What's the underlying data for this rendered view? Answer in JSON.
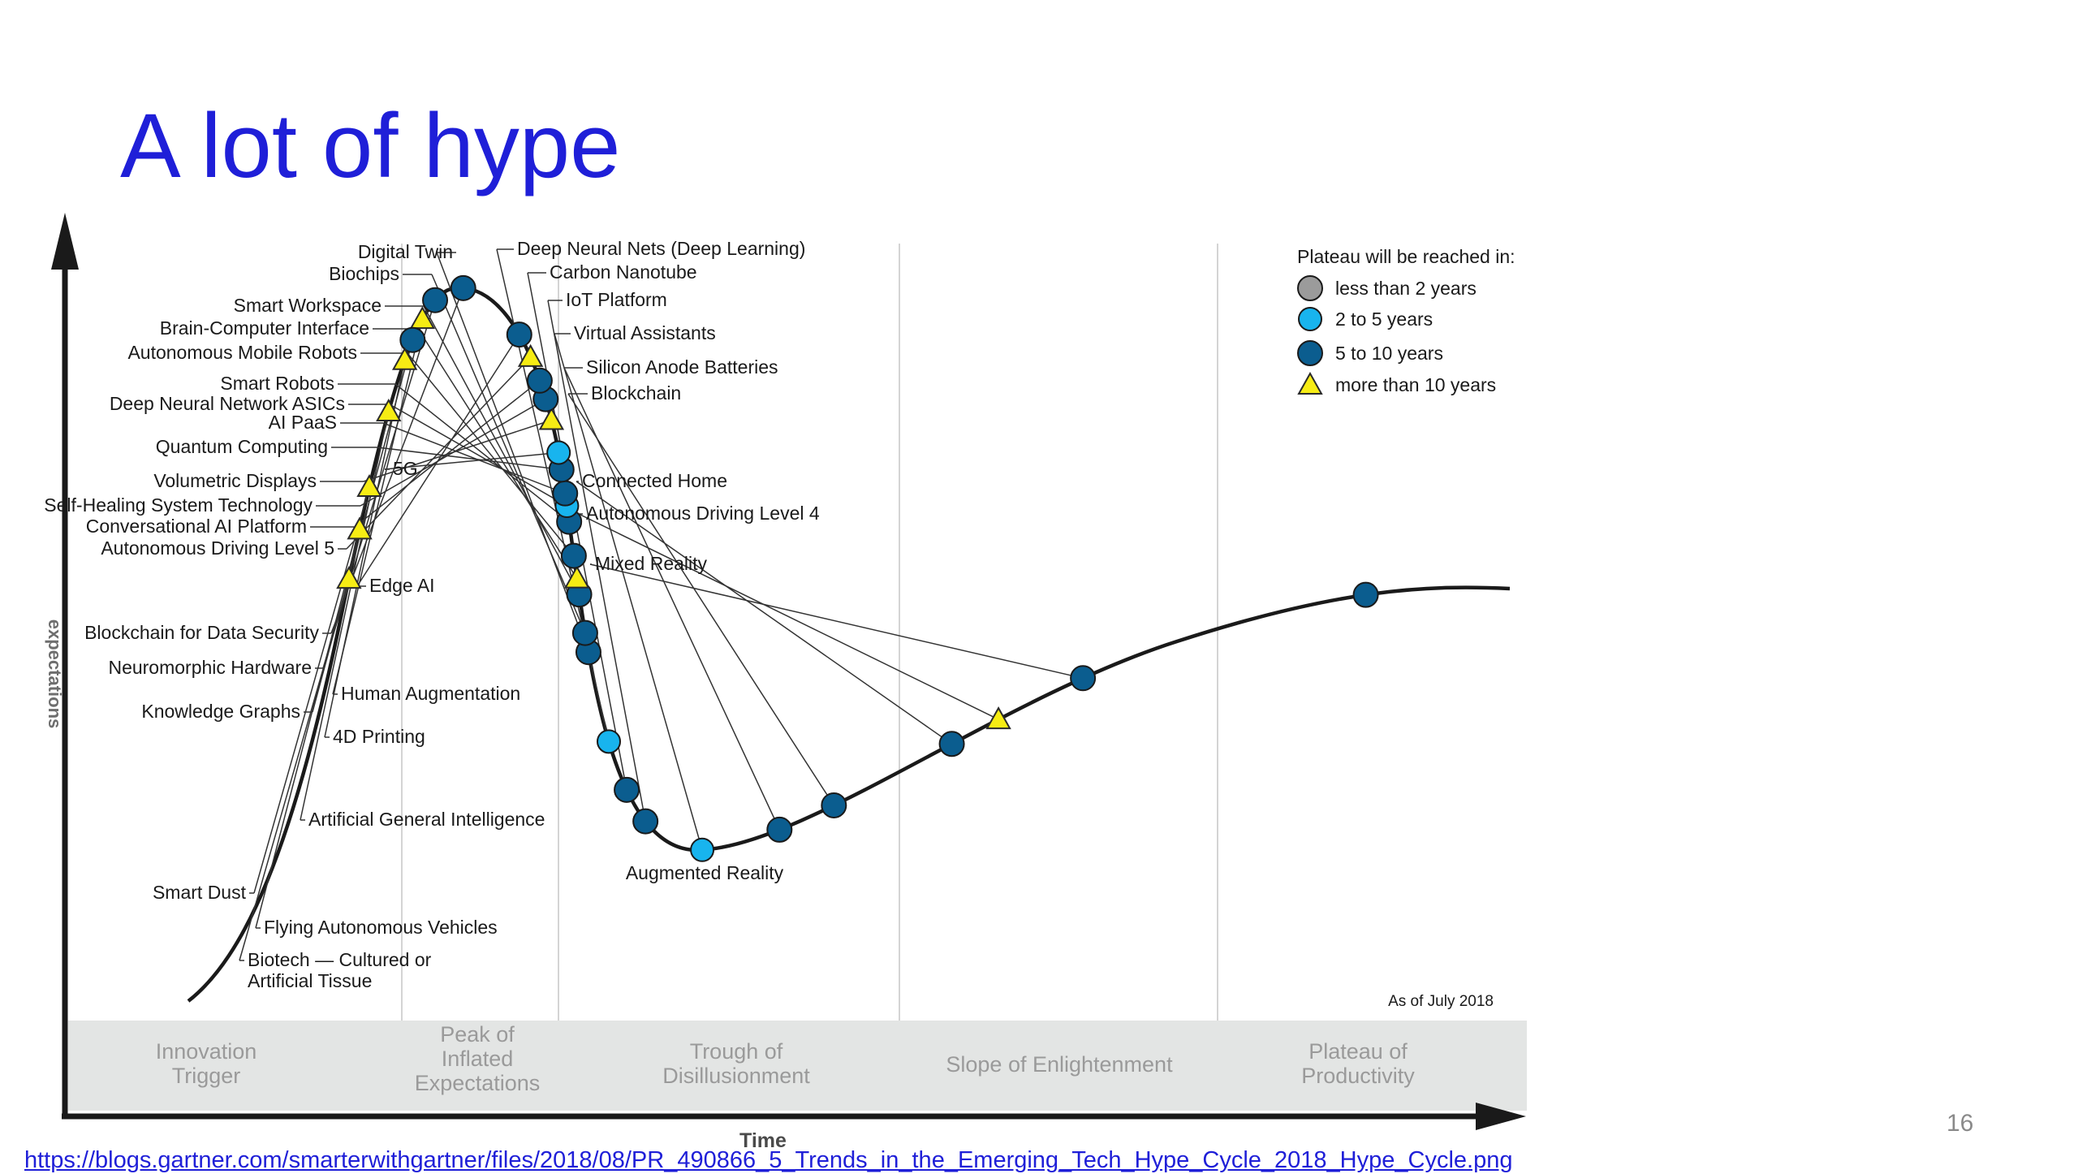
{
  "slide": {
    "title": "A lot of hype",
    "page_number": "16",
    "source_link": "https://blogs.gartner.com/smarterwithgartner/files/2018/08/PR_490866_5_Trends_in_the_Emerging_Tech_Hype_Cycle_2018_Hype_Cycle.png"
  },
  "figure": {
    "y_axis_label": "expectations",
    "x_axis_label": "Time",
    "as_of": "As of July 2018",
    "colors": {
      "lt2": "#9b9b9b",
      "2to5": "#18b4ee",
      "5to10": "#0b5d8f",
      "gt10": "#f6ec14",
      "curve": "#1a1a1a",
      "band": "#e3e5e4"
    },
    "legend": {
      "title": "Plateau will be reached in:",
      "items": [
        {
          "label": "less than 2 years",
          "cat": "lt2"
        },
        {
          "label": "2 to 5 years",
          "cat": "2to5"
        },
        {
          "label": "5 to 10 years",
          "cat": "5to10"
        },
        {
          "label": "more than 10 years",
          "cat": "gt10"
        }
      ]
    },
    "phases": [
      {
        "label": "Innovation Trigger"
      },
      {
        "label": "Peak of Inflated Expectations"
      },
      {
        "label": "Trough of Disillusionment"
      },
      {
        "label": "Slope of Enlightenment"
      },
      {
        "label": "Plateau of Productivity"
      }
    ],
    "technologies": [
      {
        "name": "Digital Twin",
        "cat": "5to10"
      },
      {
        "name": "Biochips",
        "cat": "5to10"
      },
      {
        "name": "Smart Workspace",
        "cat": "5to10"
      },
      {
        "name": "Brain-Computer Interface",
        "cat": "gt10"
      },
      {
        "name": "Autonomous Mobile Robots",
        "cat": "5to10"
      },
      {
        "name": "Smart Robots",
        "cat": "5to10"
      },
      {
        "name": "Deep Neural Network ASICs",
        "cat": "2to5"
      },
      {
        "name": "AI PaaS",
        "cat": "5to10"
      },
      {
        "name": "Quantum Computing",
        "cat": "5to10"
      },
      {
        "name": "5G",
        "cat": "2to5"
      },
      {
        "name": "Volumetric Displays",
        "cat": "gt10"
      },
      {
        "name": "Self-Healing System Technology",
        "cat": "5to10"
      },
      {
        "name": "Conversational AI Platform",
        "cat": "5to10"
      },
      {
        "name": "Autonomous Driving Level 5",
        "cat": "gt10"
      },
      {
        "name": "Edge AI",
        "cat": "5to10"
      },
      {
        "name": "Blockchain for Data Security",
        "cat": "5to10"
      },
      {
        "name": "Neuromorphic Hardware",
        "cat": "5to10"
      },
      {
        "name": "Human Augmentation",
        "cat": "gt10"
      },
      {
        "name": "Knowledge Graphs",
        "cat": "5to10"
      },
      {
        "name": "4D Printing",
        "cat": "gt10"
      },
      {
        "name": "Artificial General Intelligence",
        "cat": "gt10"
      },
      {
        "name": "Smart Dust",
        "cat": "gt10"
      },
      {
        "name": "Flying Autonomous Vehicles",
        "cat": "gt10"
      },
      {
        "name": "Biotech — Cultured or Artificial Tissue",
        "cat": "gt10"
      },
      {
        "name": "Deep Neural Nets (Deep Learning)",
        "cat": "2to5"
      },
      {
        "name": "Carbon Nanotube",
        "cat": "5to10"
      },
      {
        "name": "IoT Platform",
        "cat": "5to10"
      },
      {
        "name": "Virtual Assistants",
        "cat": "2to5"
      },
      {
        "name": "Silicon Anode Batteries",
        "cat": "5to10"
      },
      {
        "name": "Blockchain",
        "cat": "5to10"
      },
      {
        "name": "Connected Home",
        "cat": "5to10"
      },
      {
        "name": "Autonomous Driving Level 4",
        "cat": "gt10"
      },
      {
        "name": "Mixed Reality",
        "cat": "5to10"
      },
      {
        "name": "Augmented Reality",
        "cat": "5to10"
      }
    ]
  }
}
